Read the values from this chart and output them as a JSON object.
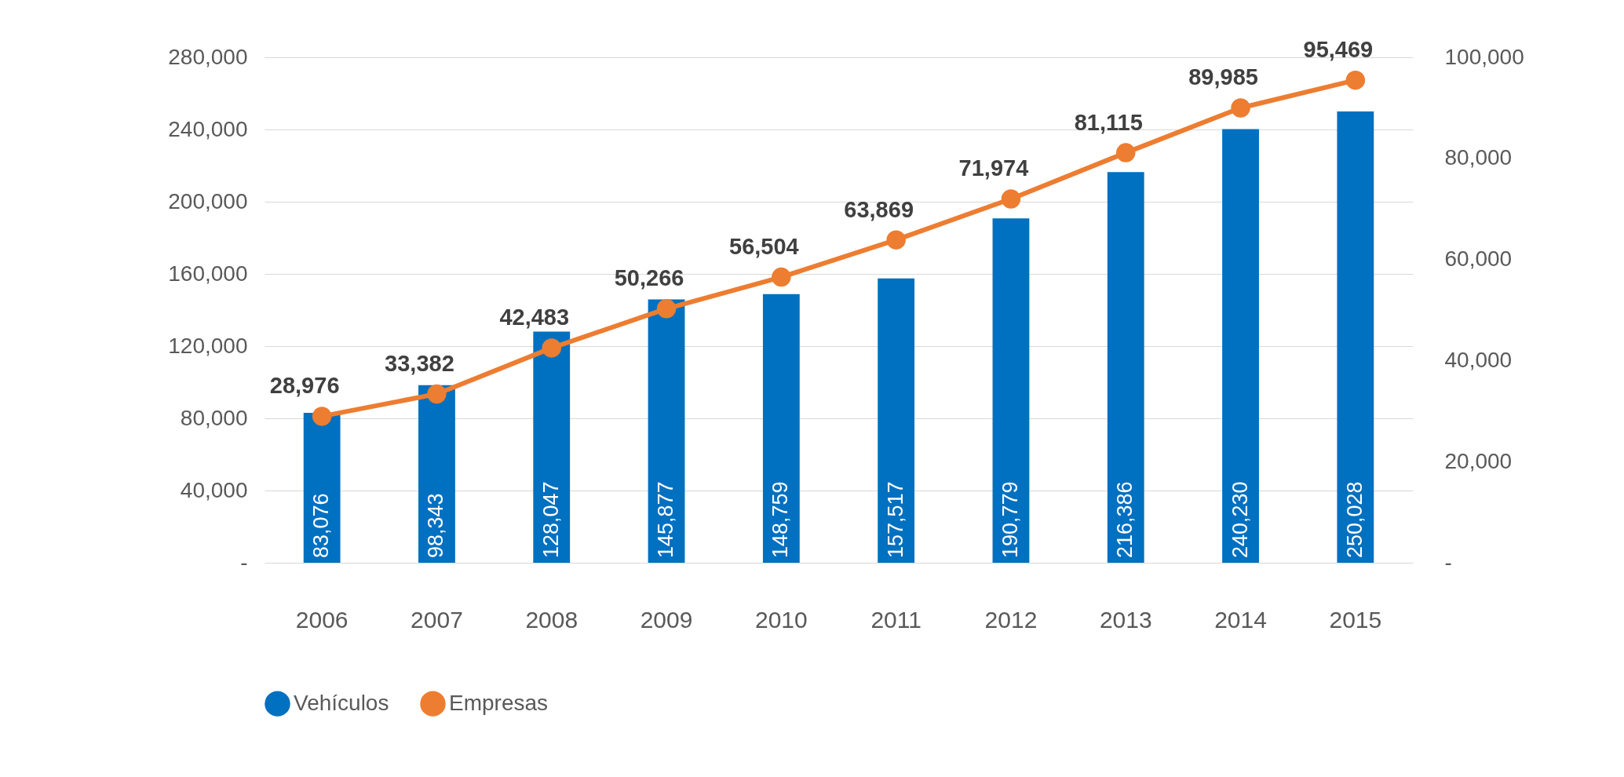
{
  "chart_data": {
    "type": "bar",
    "categories": [
      "2006",
      "2007",
      "2008",
      "2009",
      "2010",
      "2011",
      "2012",
      "2013",
      "2014",
      "2015"
    ],
    "series": [
      {
        "name": "Vehículos",
        "color": "#0070c0",
        "values": [
          83076,
          98343,
          128047,
          145877,
          148759,
          157517,
          190779,
          216386,
          240230,
          250028
        ],
        "value_labels": [
          "83,076",
          "98,343",
          "128,047",
          "145,877",
          "148,759",
          "157,517",
          "190,779",
          "216,386",
          "240,230",
          "250,028"
        ]
      },
      {
        "name": "Empresas",
        "type": "line",
        "axis": "y2",
        "color": "#ed7d31",
        "marker": "circle",
        "values": [
          28976,
          33382,
          42483,
          50266,
          56504,
          63869,
          71974,
          81115,
          89985,
          95469
        ],
        "value_labels": [
          "28,976",
          "33,382",
          "42,483",
          "50,266",
          "56,504",
          "63,869",
          "71,974",
          "81,115",
          "89,985",
          "95,469"
        ]
      }
    ],
    "legend": "bottom",
    "grid": "y",
    "ylim": [
      0,
      280000
    ],
    "yticks": [
      {
        "value": 0,
        "label": "-"
      },
      {
        "value": 40000,
        "label": "40,000"
      },
      {
        "value": 80000,
        "label": "80,000"
      },
      {
        "value": 120000,
        "label": "120,000"
      },
      {
        "value": 160000,
        "label": "160,000"
      },
      {
        "value": 200000,
        "label": "200,000"
      },
      {
        "value": 240000,
        "label": "240,000"
      },
      {
        "value": 280000,
        "label": "280,000"
      }
    ],
    "y2lim": [
      0,
      100000
    ],
    "y2ticks": [
      {
        "value": 0,
        "label": "-"
      },
      {
        "value": 20000,
        "label": "20,000"
      },
      {
        "value": 40000,
        "label": "40,000"
      },
      {
        "value": 60000,
        "label": "60,000"
      },
      {
        "value": 80000,
        "label": "80,000"
      },
      {
        "value": 100000,
        "label": "100,000"
      }
    ]
  }
}
